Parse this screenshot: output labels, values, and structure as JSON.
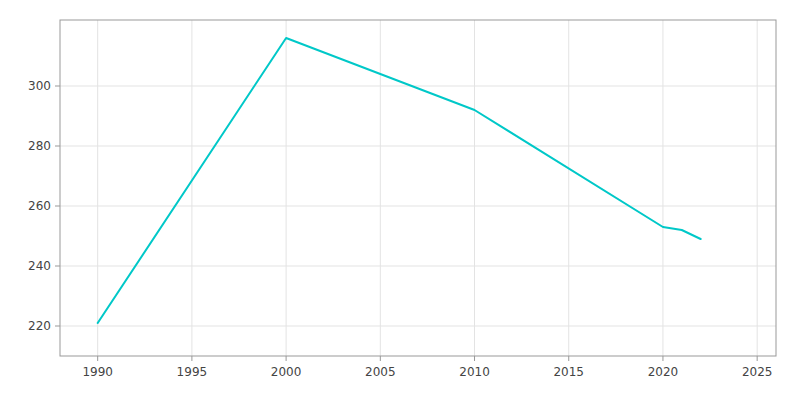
{
  "chart_data": {
    "type": "line",
    "x": [
      1990,
      2000,
      2010,
      2020,
      2021,
      2022
    ],
    "values": [
      221,
      316,
      292,
      253,
      252,
      249
    ],
    "color": "#00C8C8",
    "xlim": [
      1988,
      2026
    ],
    "ylim": [
      210,
      322
    ],
    "xticks": [
      1990,
      1995,
      2000,
      2005,
      2010,
      2015,
      2020,
      2025
    ],
    "yticks": [
      220,
      240,
      260,
      280,
      300
    ],
    "grid": true
  }
}
